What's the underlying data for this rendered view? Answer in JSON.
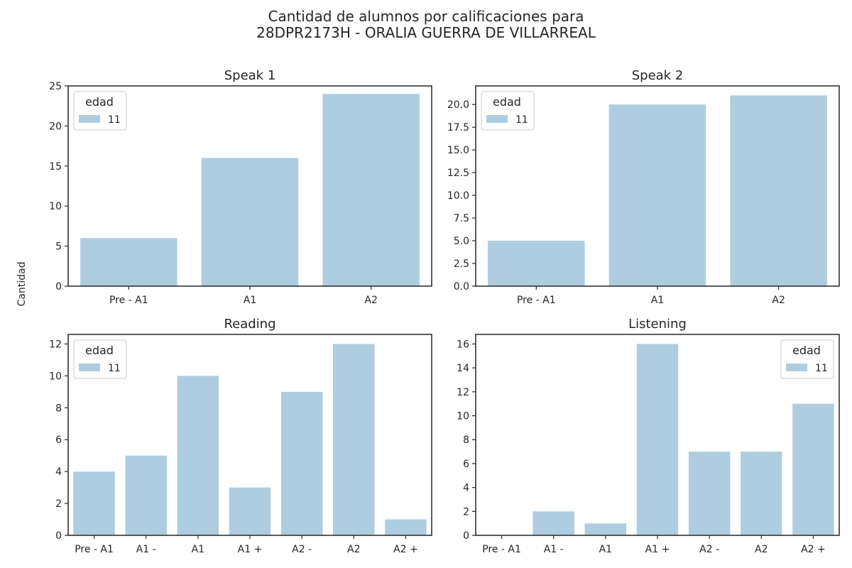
{
  "title_lines": [
    "Cantidad de alumnos por calificaciones para",
    "28DPR2173H - ORALIA GUERRA DE VILLARREAL"
  ],
  "ylabel": "Cantidad",
  "colors": {
    "bar": "#aecde1",
    "axis": "#262626",
    "legend_border": "#cccccc"
  },
  "chart_data": [
    {
      "type": "bar",
      "title": "Speak 1",
      "categories": [
        "Pre - A1",
        "A1",
        "A2"
      ],
      "series": [
        {
          "name": "11",
          "values": [
            6,
            16,
            24
          ]
        }
      ],
      "ylim": [
        0,
        25
      ],
      "yticks": [
        "0",
        "5",
        "10",
        "15",
        "20",
        "25"
      ],
      "legend": {
        "title": "edad",
        "placement": "top-left"
      }
    },
    {
      "type": "bar",
      "title": "Speak 2",
      "categories": [
        "Pre - A1",
        "A1",
        "A2"
      ],
      "series": [
        {
          "name": "11",
          "values": [
            5,
            20,
            21
          ]
        }
      ],
      "ylim": [
        0,
        22.05
      ],
      "yticks": [
        "0.0",
        "2.5",
        "5.0",
        "7.5",
        "10.0",
        "12.5",
        "15.0",
        "17.5",
        "20.0"
      ],
      "legend": {
        "title": "edad",
        "placement": "top-left"
      }
    },
    {
      "type": "bar",
      "title": "Reading",
      "categories": [
        "Pre - A1",
        "A1 -",
        "A1",
        "A1 +",
        "A2 -",
        "A2",
        "A2 +"
      ],
      "series": [
        {
          "name": "11",
          "values": [
            4,
            5,
            10,
            3,
            9,
            12,
            1
          ]
        }
      ],
      "ylim": [
        0,
        12.6
      ],
      "yticks": [
        "0",
        "2",
        "4",
        "6",
        "8",
        "10",
        "12"
      ],
      "legend": {
        "title": "edad",
        "placement": "top-left"
      }
    },
    {
      "type": "bar",
      "title": "Listening",
      "categories": [
        "Pre - A1",
        "A1 -",
        "A1",
        "A1 +",
        "A2 -",
        "A2",
        "A2 +"
      ],
      "series": [
        {
          "name": "11",
          "values": [
            0,
            2,
            1,
            16,
            7,
            7,
            11
          ]
        }
      ],
      "ylim": [
        0,
        16.8
      ],
      "yticks": [
        "0",
        "2",
        "4",
        "6",
        "8",
        "10",
        "12",
        "14",
        "16"
      ],
      "legend": {
        "title": "edad",
        "placement": "top-right"
      }
    }
  ]
}
